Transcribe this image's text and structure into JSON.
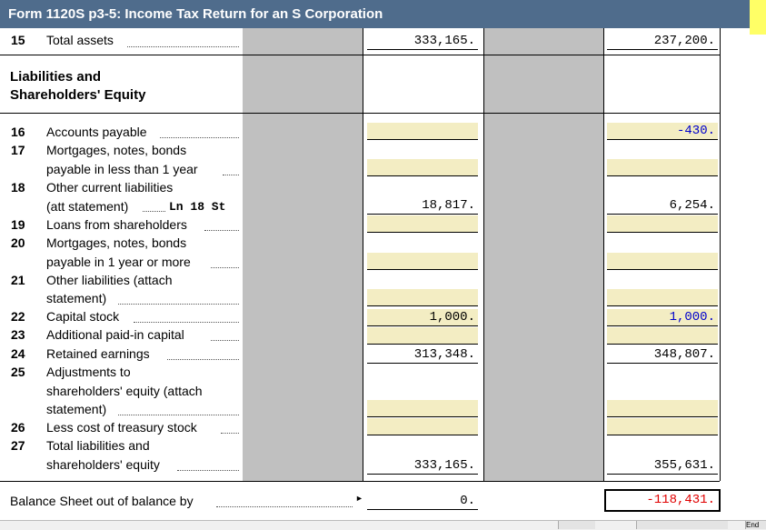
{
  "window": {
    "title": "Form 1120S p3-5: Income Tax Return for an S Corporation"
  },
  "section": {
    "heading_line1": "Liabilities and",
    "heading_line2": "Shareholders' Equity"
  },
  "rows": {
    "r15": {
      "num": "15",
      "label": "Total assets",
      "col_b": "333,165.",
      "col_d": "237,200."
    },
    "r16": {
      "num": "16",
      "label": "Accounts payable",
      "col_b": "",
      "col_d": "-430."
    },
    "r17": {
      "num": "17",
      "label1": "Mortgages, notes, bonds",
      "label2": "payable in less than 1 year",
      "col_b": "",
      "col_d": ""
    },
    "r18": {
      "num": "18",
      "label1": "Other current liabilities",
      "label2": "(att statement)",
      "ref": "Ln 18 St",
      "col_b": "18,817.",
      "col_d": "6,254."
    },
    "r19": {
      "num": "19",
      "label": "Loans from shareholders",
      "col_b": "",
      "col_d": ""
    },
    "r20": {
      "num": "20",
      "label1": "Mortgages, notes, bonds",
      "label2": "payable in 1 year or more",
      "col_b": "",
      "col_d": ""
    },
    "r21": {
      "num": "21",
      "label1": "Other liabilities (attach",
      "label2": "statement)",
      "col_b": "",
      "col_d": ""
    },
    "r22": {
      "num": "22",
      "label": "Capital stock",
      "col_b": "1,000.",
      "col_d": "1,000."
    },
    "r23": {
      "num": "23",
      "label": "Additional paid-in capital",
      "col_b": "",
      "col_d": ""
    },
    "r24": {
      "num": "24",
      "label": "Retained earnings",
      "col_b": "313,348.",
      "col_d": "348,807."
    },
    "r25": {
      "num": "25",
      "label1": "Adjustments to",
      "label2": "shareholders' equity (attach",
      "label3": "statement)",
      "col_b": "",
      "col_d": ""
    },
    "r26": {
      "num": "26",
      "label": "Less cost of treasury stock",
      "col_b": "",
      "col_d": ""
    },
    "r27": {
      "num": "27",
      "label1": "Total liabilities and",
      "label2": "shareholders' equity",
      "col_b": "333,165.",
      "col_d": "355,631."
    }
  },
  "balance": {
    "label": "Balance Sheet out of balance by",
    "arrow": "►",
    "col_b": "0.",
    "col_d": "-118,431."
  },
  "footer": {
    "tab_label": "End"
  },
  "colors": {
    "title_bar": "#4f6c8c",
    "input_fill": "#f3edc3",
    "shaded": "#c0c0c0",
    "blue_value": "#0000cc",
    "error_value": "#e00000"
  }
}
